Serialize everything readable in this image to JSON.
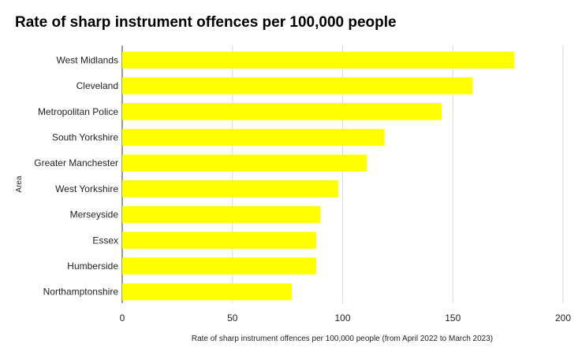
{
  "chart_data": {
    "type": "bar",
    "orientation": "horizontal",
    "title": "Rate of sharp instrument offences per 100,000 people",
    "xlabel": "Rate of sharp instrument offences per 100,000 people (from April 2022 to March 2023)",
    "ylabel": "Area",
    "categories": [
      "West Midlands",
      "Cleveland",
      "Metropolitan Police",
      "South Yorkshire",
      "Greater Manchester",
      "West Yorkshire",
      "Merseyside",
      "Essex",
      "Humberside",
      "Northamptonshire"
    ],
    "values": [
      178,
      159,
      145,
      119,
      111,
      98,
      90,
      88,
      88,
      77
    ],
    "xlim": [
      0,
      200
    ],
    "xticks": [
      0,
      50,
      100,
      150,
      200
    ],
    "grid": true,
    "bar_color": "#ffff00",
    "grid_color": "#d9d9d9"
  }
}
